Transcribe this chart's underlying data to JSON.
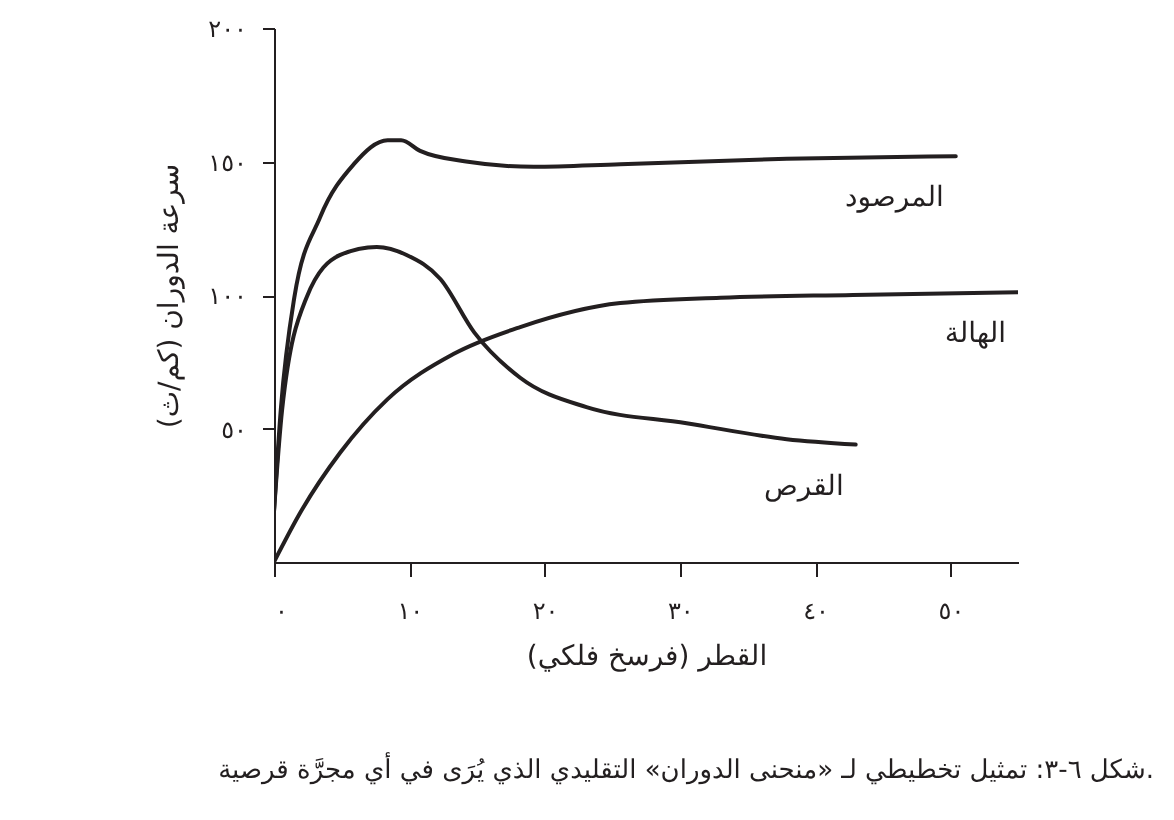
{
  "chart_data": {
    "type": "line",
    "xlabel": "القطر (فرسخ فلكي)",
    "ylabel": "سرعة الدوران (كم/ث)",
    "annotations": [
      "شكل ٦-٣: تمثيل تخطيطي لـ «منحنى الدوران» التقليدي الذي يُرَى في أي مجرَّة قرصية."
    ],
    "xlim": [
      0,
      55
    ],
    "ylim": [
      0,
      200
    ],
    "xticks": [
      {
        "value": 0,
        "label": "٠"
      },
      {
        "value": 10,
        "label": "١٠"
      },
      {
        "value": 20,
        "label": "٢٠"
      },
      {
        "value": 30,
        "label": "٣٠"
      },
      {
        "value": 40,
        "label": "٤٠"
      },
      {
        "value": 50,
        "label": "٥٠"
      }
    ],
    "yticks": [
      {
        "value": 50,
        "label": "٥٠"
      },
      {
        "value": 100,
        "label": "١٠٠"
      },
      {
        "value": 150,
        "label": "١٥٠"
      },
      {
        "value": 200,
        "label": "٢٠٠"
      }
    ],
    "grid": false,
    "marker": "none",
    "line_style": "solid",
    "series": [
      {
        "name": "المرصود",
        "color": "#231f20",
        "x": [
          0,
          0.5,
          1.5,
          3.4,
          5.9,
          8.4,
          9.4,
          10.8,
          14.2,
          19.2,
          25.6,
          37.9,
          50.4
        ],
        "values": [
          19,
          57,
          99,
          129,
          149,
          158,
          158,
          154,
          150,
          148,
          149,
          151,
          152
        ]
      },
      {
        "name": "الهالة",
        "color": "#231f20",
        "x": [
          0,
          2.0,
          4.9,
          8.4,
          13.3,
          18.2,
          25.6,
          33,
          42.8,
          55
        ],
        "values": [
          0,
          19,
          41,
          61,
          78,
          88,
          97,
          99,
          100,
          101
        ]
      },
      {
        "name": "القرص",
        "color": "#231f20",
        "x": [
          0,
          0.6,
          2.4,
          4.9,
          7.6,
          9.8,
          12.3,
          14.8,
          18.2,
          23.1,
          30.5,
          37.9,
          43.0
        ],
        "values": [
          19,
          57,
          99,
          115,
          118,
          115,
          106,
          86,
          69,
          58,
          52,
          46,
          44
        ]
      }
    ]
  }
}
